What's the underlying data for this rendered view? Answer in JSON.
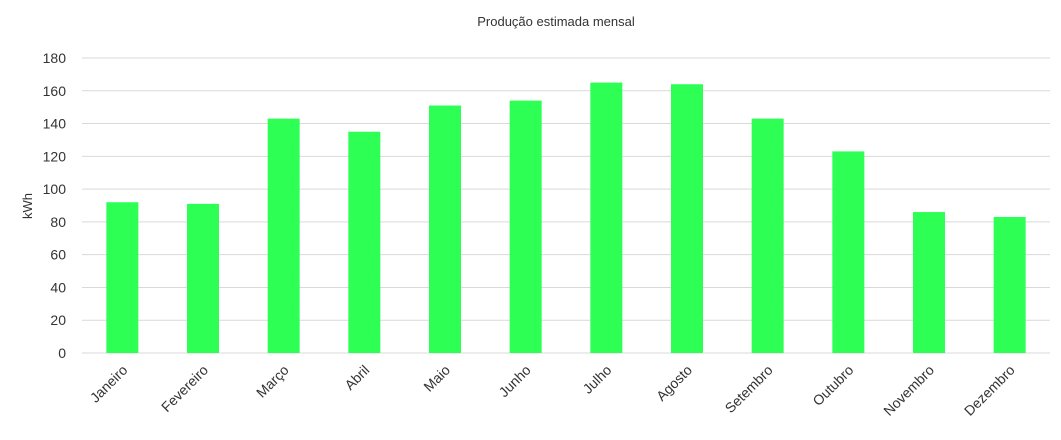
{
  "chart_data": {
    "type": "bar",
    "title": "Produção estimada mensal",
    "xlabel": "",
    "ylabel": "kWh",
    "ylim": [
      0,
      180
    ],
    "yticks": [
      0,
      20,
      40,
      60,
      80,
      100,
      120,
      140,
      160,
      180
    ],
    "grid": true,
    "legend": "none",
    "bar_color": "#2eff55",
    "categories": [
      "Janeiro",
      "Fevereiro",
      "Março",
      "Abril",
      "Maio",
      "Junho",
      "Julho",
      "Agosto",
      "Setembro",
      "Outubro",
      "Novembro",
      "Dezembro"
    ],
    "values": [
      92,
      91,
      143,
      135,
      151,
      154,
      165,
      164,
      143,
      123,
      86,
      83
    ]
  }
}
